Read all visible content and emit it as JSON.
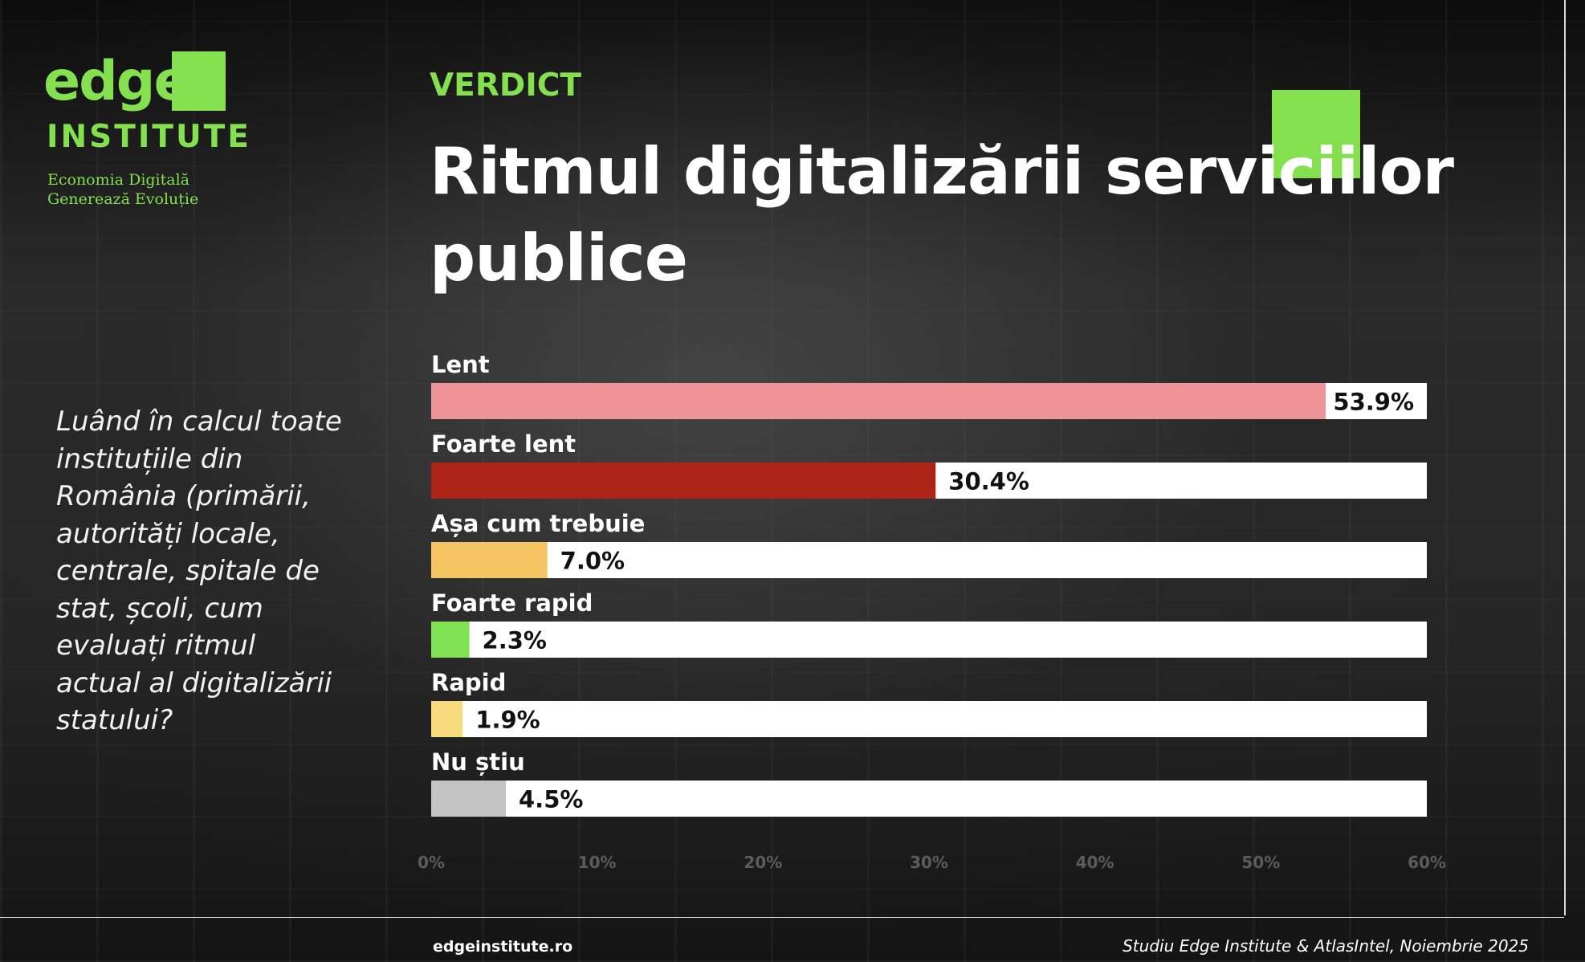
{
  "logo": {
    "brand": "edge",
    "institute": "INSTITUTE",
    "tagline_1": "Economia Digitală",
    "tagline_2": "Generează Evoluție"
  },
  "header": {
    "kicker": "VERDICT",
    "title": "Ritmul digitalizării serviciilor publice"
  },
  "question": "Luând în calcul toate instituțiile din România (primării, autorități locale, centrale, spitale de stat, școli, cum evaluați ritmul actual al digitalizării statului?",
  "footer": {
    "website": "edgeinstitute.ro",
    "source": "Studiu Edge Institute & AtlasIntel, Noiembrie 2025"
  },
  "colors": {
    "accent": "#84e04f",
    "track": "#ffffff"
  },
  "chart_data": {
    "type": "bar",
    "orientation": "horizontal",
    "categories": [
      "Lent",
      "Foarte lent",
      "Așa cum trebuie",
      "Foarte rapid",
      "Rapid",
      "Nu știu"
    ],
    "values": [
      53.9,
      30.4,
      7.0,
      2.3,
      1.9,
      4.5
    ],
    "value_labels": [
      "53.9%",
      "30.4%",
      "7.0%",
      "2.3%",
      "1.9%",
      "4.5%"
    ],
    "bar_colors": [
      "#ee9499",
      "#ad2318",
      "#f5c463",
      "#7fe153",
      "#f8db7e",
      "#c4c4c4"
    ],
    "xlim": [
      0,
      60
    ],
    "x_ticks": [
      "0%",
      "10%",
      "20%",
      "30%",
      "40%",
      "50%",
      "60%"
    ],
    "grid": false
  }
}
